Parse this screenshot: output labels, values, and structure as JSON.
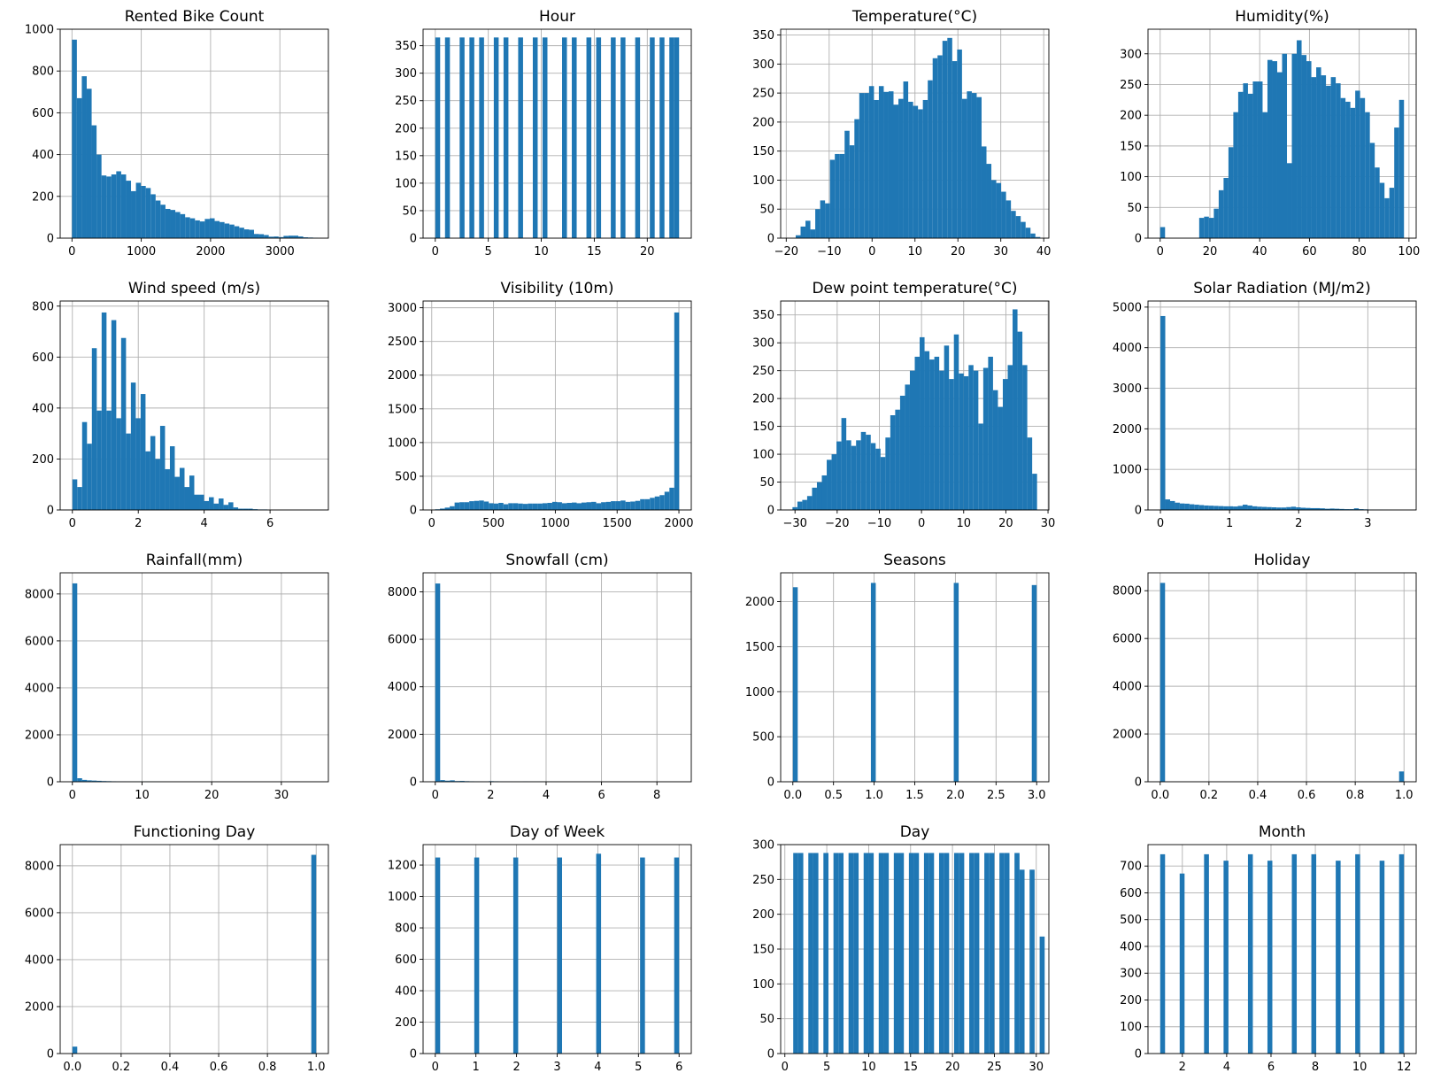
{
  "chart_data": [
    {
      "type": "bar",
      "title": "Rented Bike Count",
      "xlim": [
        -170,
        3700
      ],
      "ylim": [
        0,
        1000
      ],
      "xticks": [
        0,
        1000,
        2000,
        3000
      ],
      "yticks": [
        0,
        200,
        400,
        600,
        800,
        1000
      ],
      "grid": true,
      "bin_start": 0,
      "bin_width": 71.0,
      "values": [
        950,
        670,
        775,
        715,
        540,
        400,
        300,
        295,
        305,
        320,
        305,
        275,
        225,
        265,
        250,
        240,
        210,
        180,
        160,
        140,
        135,
        125,
        115,
        100,
        95,
        85,
        80,
        92,
        95,
        82,
        77,
        70,
        65,
        57,
        50,
        42,
        40,
        20,
        19,
        15,
        7,
        8,
        5,
        11,
        12,
        12,
        8,
        4,
        3,
        2
      ]
    },
    {
      "type": "bar",
      "title": "Hour",
      "xlim": [
        -1.15,
        24.15
      ],
      "ylim": [
        0,
        380
      ],
      "xticks": [
        0,
        5,
        10,
        15,
        20
      ],
      "yticks": [
        0,
        50,
        100,
        150,
        200,
        250,
        300,
        350
      ],
      "grid": true,
      "bin_start": 0,
      "bin_width": 0.46,
      "values": [
        365,
        0,
        365,
        0,
        0,
        365,
        0,
        365,
        0,
        365,
        0,
        0,
        365,
        0,
        365,
        0,
        0,
        365,
        0,
        0,
        365,
        0,
        365,
        0,
        0,
        0,
        365,
        0,
        365,
        0,
        0,
        365,
        0,
        365,
        0,
        0,
        365,
        0,
        365,
        0,
        0,
        365,
        0,
        0,
        365,
        0,
        365,
        0,
        365,
        365
      ]
    },
    {
      "type": "bar",
      "title": "Temperature(°C)",
      "xlim": [
        -21.3,
        41.2
      ],
      "ylim": [
        0,
        360
      ],
      "xticks": [
        -20,
        -10,
        0,
        10,
        20,
        30,
        40
      ],
      "yticks": [
        0,
        50,
        100,
        150,
        200,
        250,
        300,
        350
      ],
      "grid": true,
      "bin_start": -17.8,
      "bin_width": 1.14,
      "values": [
        5,
        20,
        30,
        15,
        50,
        65,
        60,
        135,
        145,
        145,
        185,
        160,
        205,
        250,
        250,
        262,
        238,
        262,
        252,
        253,
        230,
        240,
        270,
        235,
        228,
        222,
        238,
        272,
        310,
        315,
        340,
        345,
        305,
        325,
        240,
        253,
        250,
        243,
        158,
        128,
        100,
        95,
        80,
        65,
        47,
        38,
        28,
        18,
        8,
        2
      ]
    },
    {
      "type": "bar",
      "title": "Humidity(%)",
      "xlim": [
        -4.9,
        102.9
      ],
      "ylim": [
        0,
        340
      ],
      "xticks": [
        0,
        20,
        40,
        60,
        80,
        100
      ],
      "yticks": [
        0,
        50,
        100,
        150,
        200,
        250,
        300
      ],
      "grid": true,
      "bin_start": 0,
      "bin_width": 1.96,
      "values": [
        18,
        0,
        0,
        0,
        0,
        0,
        0,
        0,
        33,
        35,
        33,
        48,
        78,
        98,
        148,
        205,
        238,
        252,
        235,
        255,
        255,
        205,
        290,
        288,
        270,
        300,
        122,
        300,
        322,
        298,
        288,
        262,
        278,
        265,
        248,
        262,
        252,
        228,
        222,
        212,
        240,
        228,
        205,
        155,
        115,
        90,
        65,
        82,
        180,
        225
      ]
    },
    {
      "type": "bar",
      "title": "Wind speed (m/s)",
      "xlim": [
        -0.37,
        7.77
      ],
      "ylim": [
        0,
        820
      ],
      "xticks": [
        0,
        2,
        4,
        6
      ],
      "yticks": [
        0,
        200,
        400,
        600,
        800
      ],
      "grid": true,
      "bin_start": 0,
      "bin_width": 0.148,
      "values": [
        120,
        90,
        345,
        260,
        635,
        390,
        775,
        390,
        745,
        360,
        675,
        300,
        500,
        360,
        455,
        230,
        290,
        200,
        330,
        160,
        250,
        130,
        165,
        90,
        135,
        60,
        60,
        35,
        50,
        25,
        45,
        20,
        30,
        10,
        5,
        5,
        5,
        3,
        2,
        2,
        0,
        0,
        0,
        0,
        0,
        0,
        0,
        0,
        0,
        0
      ]
    },
    {
      "type": "bar",
      "title": "Visibility (10m)",
      "xlim": [
        -70,
        2100
      ],
      "ylim": [
        0,
        3100
      ],
      "xticks": [
        0,
        500,
        1000,
        1500,
        2000
      ],
      "yticks": [
        0,
        500,
        1000,
        1500,
        2000,
        2500,
        3000
      ],
      "grid": true,
      "bin_start": 27,
      "bin_width": 39.5,
      "values": [
        10,
        20,
        35,
        55,
        110,
        115,
        115,
        130,
        135,
        140,
        125,
        100,
        95,
        105,
        85,
        100,
        100,
        95,
        90,
        95,
        95,
        95,
        100,
        105,
        120,
        115,
        100,
        105,
        110,
        100,
        110,
        115,
        120,
        100,
        115,
        120,
        130,
        130,
        140,
        120,
        125,
        135,
        160,
        160,
        180,
        200,
        220,
        270,
        330,
        2930
      ]
    },
    {
      "type": "bar",
      "title": "Dew point temperature(°C)",
      "xlim": [
        -33.4,
        30.2
      ],
      "ylim": [
        0,
        375
      ],
      "xticks": [
        -30,
        -20,
        -10,
        0,
        10,
        20,
        30
      ],
      "yticks": [
        0,
        50,
        100,
        150,
        200,
        250,
        300,
        350
      ],
      "grid": true,
      "bin_start": -30.6,
      "bin_width": 1.16,
      "values": [
        5,
        15,
        18,
        25,
        40,
        50,
        62,
        90,
        100,
        123,
        165,
        125,
        115,
        125,
        140,
        135,
        120,
        110,
        95,
        130,
        170,
        180,
        205,
        225,
        250,
        275,
        310,
        285,
        270,
        275,
        250,
        295,
        235,
        315,
        245,
        240,
        260,
        250,
        155,
        255,
        275,
        215,
        185,
        235,
        260,
        360,
        320,
        260,
        130,
        65
      ]
    },
    {
      "type": "bar",
      "title": "Solar Radiation (MJ/m2)",
      "xlim": [
        -0.18,
        3.7
      ],
      "ylim": [
        0,
        5150
      ],
      "xticks": [
        0,
        1,
        2,
        3
      ],
      "yticks": [
        0,
        1000,
        2000,
        3000,
        4000,
        5000
      ],
      "grid": true,
      "bin_start": 0,
      "bin_width": 0.07,
      "values": [
        4780,
        260,
        220,
        180,
        160,
        155,
        140,
        130,
        120,
        110,
        105,
        100,
        95,
        90,
        90,
        85,
        100,
        130,
        110,
        90,
        80,
        75,
        70,
        65,
        60,
        60,
        70,
        80,
        65,
        55,
        50,
        45,
        45,
        40,
        30,
        35,
        30,
        25,
        20,
        20,
        40,
        20,
        15,
        10,
        8,
        8,
        5,
        3,
        2,
        1
      ]
    },
    {
      "type": "bar",
      "title": "Rainfall(mm)",
      "xlim": [
        -1.75,
        36.75
      ],
      "ylim": [
        0,
        8900
      ],
      "xticks": [
        0,
        10,
        20,
        30
      ],
      "yticks": [
        0,
        2000,
        4000,
        6000,
        8000
      ],
      "grid": true,
      "bin_start": 0,
      "bin_width": 0.7,
      "values": [
        8450,
        150,
        80,
        60,
        50,
        40,
        30,
        25,
        20,
        15,
        10,
        8,
        5,
        5,
        5,
        4,
        4,
        3,
        3,
        2,
        2,
        2,
        2,
        2,
        1,
        1,
        1,
        1,
        1,
        1,
        1,
        1,
        1,
        1,
        1,
        1,
        1,
        0,
        0,
        0,
        0,
        0,
        0,
        0,
        0,
        0,
        0,
        0,
        0,
        1
      ]
    },
    {
      "type": "bar",
      "title": "Snowfall (cm)",
      "xlim": [
        -0.44,
        9.24
      ],
      "ylim": [
        0,
        8800
      ],
      "xticks": [
        0,
        2,
        4,
        6,
        8
      ],
      "yticks": [
        0,
        2000,
        4000,
        6000,
        8000
      ],
      "grid": true,
      "bin_start": 0,
      "bin_width": 0.176,
      "values": [
        8350,
        70,
        45,
        60,
        30,
        35,
        25,
        20,
        15,
        10,
        8,
        25,
        20,
        15,
        12,
        10,
        8,
        5,
        15,
        8,
        5,
        8,
        5,
        4,
        3,
        2,
        2,
        2,
        1,
        1,
        1,
        1,
        1,
        1,
        0,
        0,
        0,
        0,
        0,
        0,
        0,
        0,
        0,
        0,
        0,
        0,
        0,
        0,
        0,
        1
      ]
    },
    {
      "type": "bar",
      "title": "Seasons",
      "xlim": [
        -0.15,
        3.15
      ],
      "ylim": [
        0,
        2320
      ],
      "xticks": [
        0.0,
        0.5,
        1.0,
        1.5,
        2.0,
        2.5,
        3.0
      ],
      "yticks": [
        0,
        500,
        1000,
        1500,
        2000
      ],
      "grid": true,
      "bin_start": 0,
      "bin_width": 0.06,
      "values": [
        2160,
        0,
        0,
        0,
        0,
        0,
        0,
        0,
        0,
        0,
        0,
        0,
        0,
        0,
        0,
        0,
        2208,
        0,
        0,
        0,
        0,
        0,
        0,
        0,
        0,
        0,
        0,
        0,
        0,
        0,
        0,
        0,
        0,
        2208,
        0,
        0,
        0,
        0,
        0,
        0,
        0,
        0,
        0,
        0,
        0,
        0,
        0,
        0,
        0,
        2184
      ]
    },
    {
      "type": "bar",
      "title": "Holiday",
      "xlim": [
        -0.05,
        1.05
      ],
      "ylim": [
        0,
        8750
      ],
      "xticks": [
        0.0,
        0.2,
        0.4,
        0.6,
        0.8,
        1.0
      ],
      "yticks": [
        0,
        2000,
        4000,
        6000,
        8000
      ],
      "grid": true,
      "bin_start": 0,
      "bin_width": 0.02,
      "values": [
        8328,
        0,
        0,
        0,
        0,
        0,
        0,
        0,
        0,
        0,
        0,
        0,
        0,
        0,
        0,
        0,
        0,
        0,
        0,
        0,
        0,
        0,
        0,
        0,
        0,
        0,
        0,
        0,
        0,
        0,
        0,
        0,
        0,
        0,
        0,
        0,
        0,
        0,
        0,
        0,
        0,
        0,
        0,
        0,
        0,
        0,
        0,
        0,
        0,
        432
      ]
    },
    {
      "type": "bar",
      "title": "Functioning Day",
      "xlim": [
        -0.05,
        1.05
      ],
      "ylim": [
        0,
        8900
      ],
      "xticks": [
        0.0,
        0.2,
        0.4,
        0.6,
        0.8,
        1.0
      ],
      "yticks": [
        0,
        2000,
        4000,
        6000,
        8000
      ],
      "grid": true,
      "bin_start": 0,
      "bin_width": 0.02,
      "values": [
        295,
        0,
        0,
        0,
        0,
        0,
        0,
        0,
        0,
        0,
        0,
        0,
        0,
        0,
        0,
        0,
        0,
        0,
        0,
        0,
        0,
        0,
        0,
        0,
        0,
        0,
        0,
        0,
        0,
        0,
        0,
        0,
        0,
        0,
        0,
        0,
        0,
        0,
        0,
        0,
        0,
        0,
        0,
        0,
        0,
        0,
        0,
        0,
        0,
        8465
      ]
    },
    {
      "type": "bar",
      "title": "Day of Week",
      "xlim": [
        -0.3,
        6.3
      ],
      "ylim": [
        0,
        1330
      ],
      "xticks": [
        0,
        1,
        2,
        3,
        4,
        5,
        6
      ],
      "yticks": [
        0,
        200,
        400,
        600,
        800,
        1000,
        1200
      ],
      "grid": true,
      "bin_start": 0,
      "bin_width": 0.12,
      "values": [
        1248,
        0,
        0,
        0,
        0,
        0,
        0,
        0,
        1248,
        0,
        0,
        0,
        0,
        0,
        0,
        0,
        1248,
        0,
        0,
        0,
        0,
        0,
        0,
        0,
        0,
        1248,
        0,
        0,
        0,
        0,
        0,
        0,
        0,
        1272,
        0,
        0,
        0,
        0,
        0,
        0,
        0,
        0,
        1248,
        0,
        0,
        0,
        0,
        0,
        0,
        1248
      ]
    },
    {
      "type": "bar",
      "title": "Day",
      "xlim": [
        -0.5,
        31.5
      ],
      "ylim": [
        0,
        300
      ],
      "xticks": [
        0,
        5,
        10,
        15,
        20,
        25,
        30
      ],
      "yticks": [
        0,
        50,
        100,
        150,
        200,
        250,
        300
      ],
      "grid": true,
      "bin_start": 1,
      "bin_width": 0.6,
      "values": [
        288,
        288,
        0,
        288,
        288,
        0,
        288,
        0,
        288,
        288,
        0,
        288,
        288,
        0,
        288,
        288,
        0,
        288,
        288,
        0,
        288,
        288,
        0,
        288,
        288,
        0,
        288,
        288,
        0,
        288,
        288,
        0,
        288,
        288,
        0,
        288,
        288,
        0,
        288,
        288,
        0,
        288,
        288,
        0,
        288,
        264,
        0,
        264,
        0,
        168
      ]
    },
    {
      "type": "bar",
      "title": "Month",
      "xlim": [
        0.45,
        12.55
      ],
      "ylim": [
        0,
        780
      ],
      "xticks": [
        2,
        4,
        6,
        8,
        10,
        12
      ],
      "yticks": [
        0,
        100,
        200,
        300,
        400,
        500,
        600,
        700
      ],
      "grid": true,
      "bin_start": 1,
      "bin_width": 0.22,
      "values": [
        744,
        0,
        0,
        0,
        672,
        0,
        0,
        0,
        0,
        744,
        0,
        0,
        0,
        720,
        0,
        0,
        0,
        0,
        744,
        0,
        0,
        0,
        720,
        0,
        0,
        0,
        0,
        744,
        0,
        0,
        0,
        744,
        0,
        0,
        0,
        0,
        720,
        0,
        0,
        0,
        744,
        0,
        0,
        0,
        0,
        720,
        0,
        0,
        0,
        744
      ]
    }
  ]
}
